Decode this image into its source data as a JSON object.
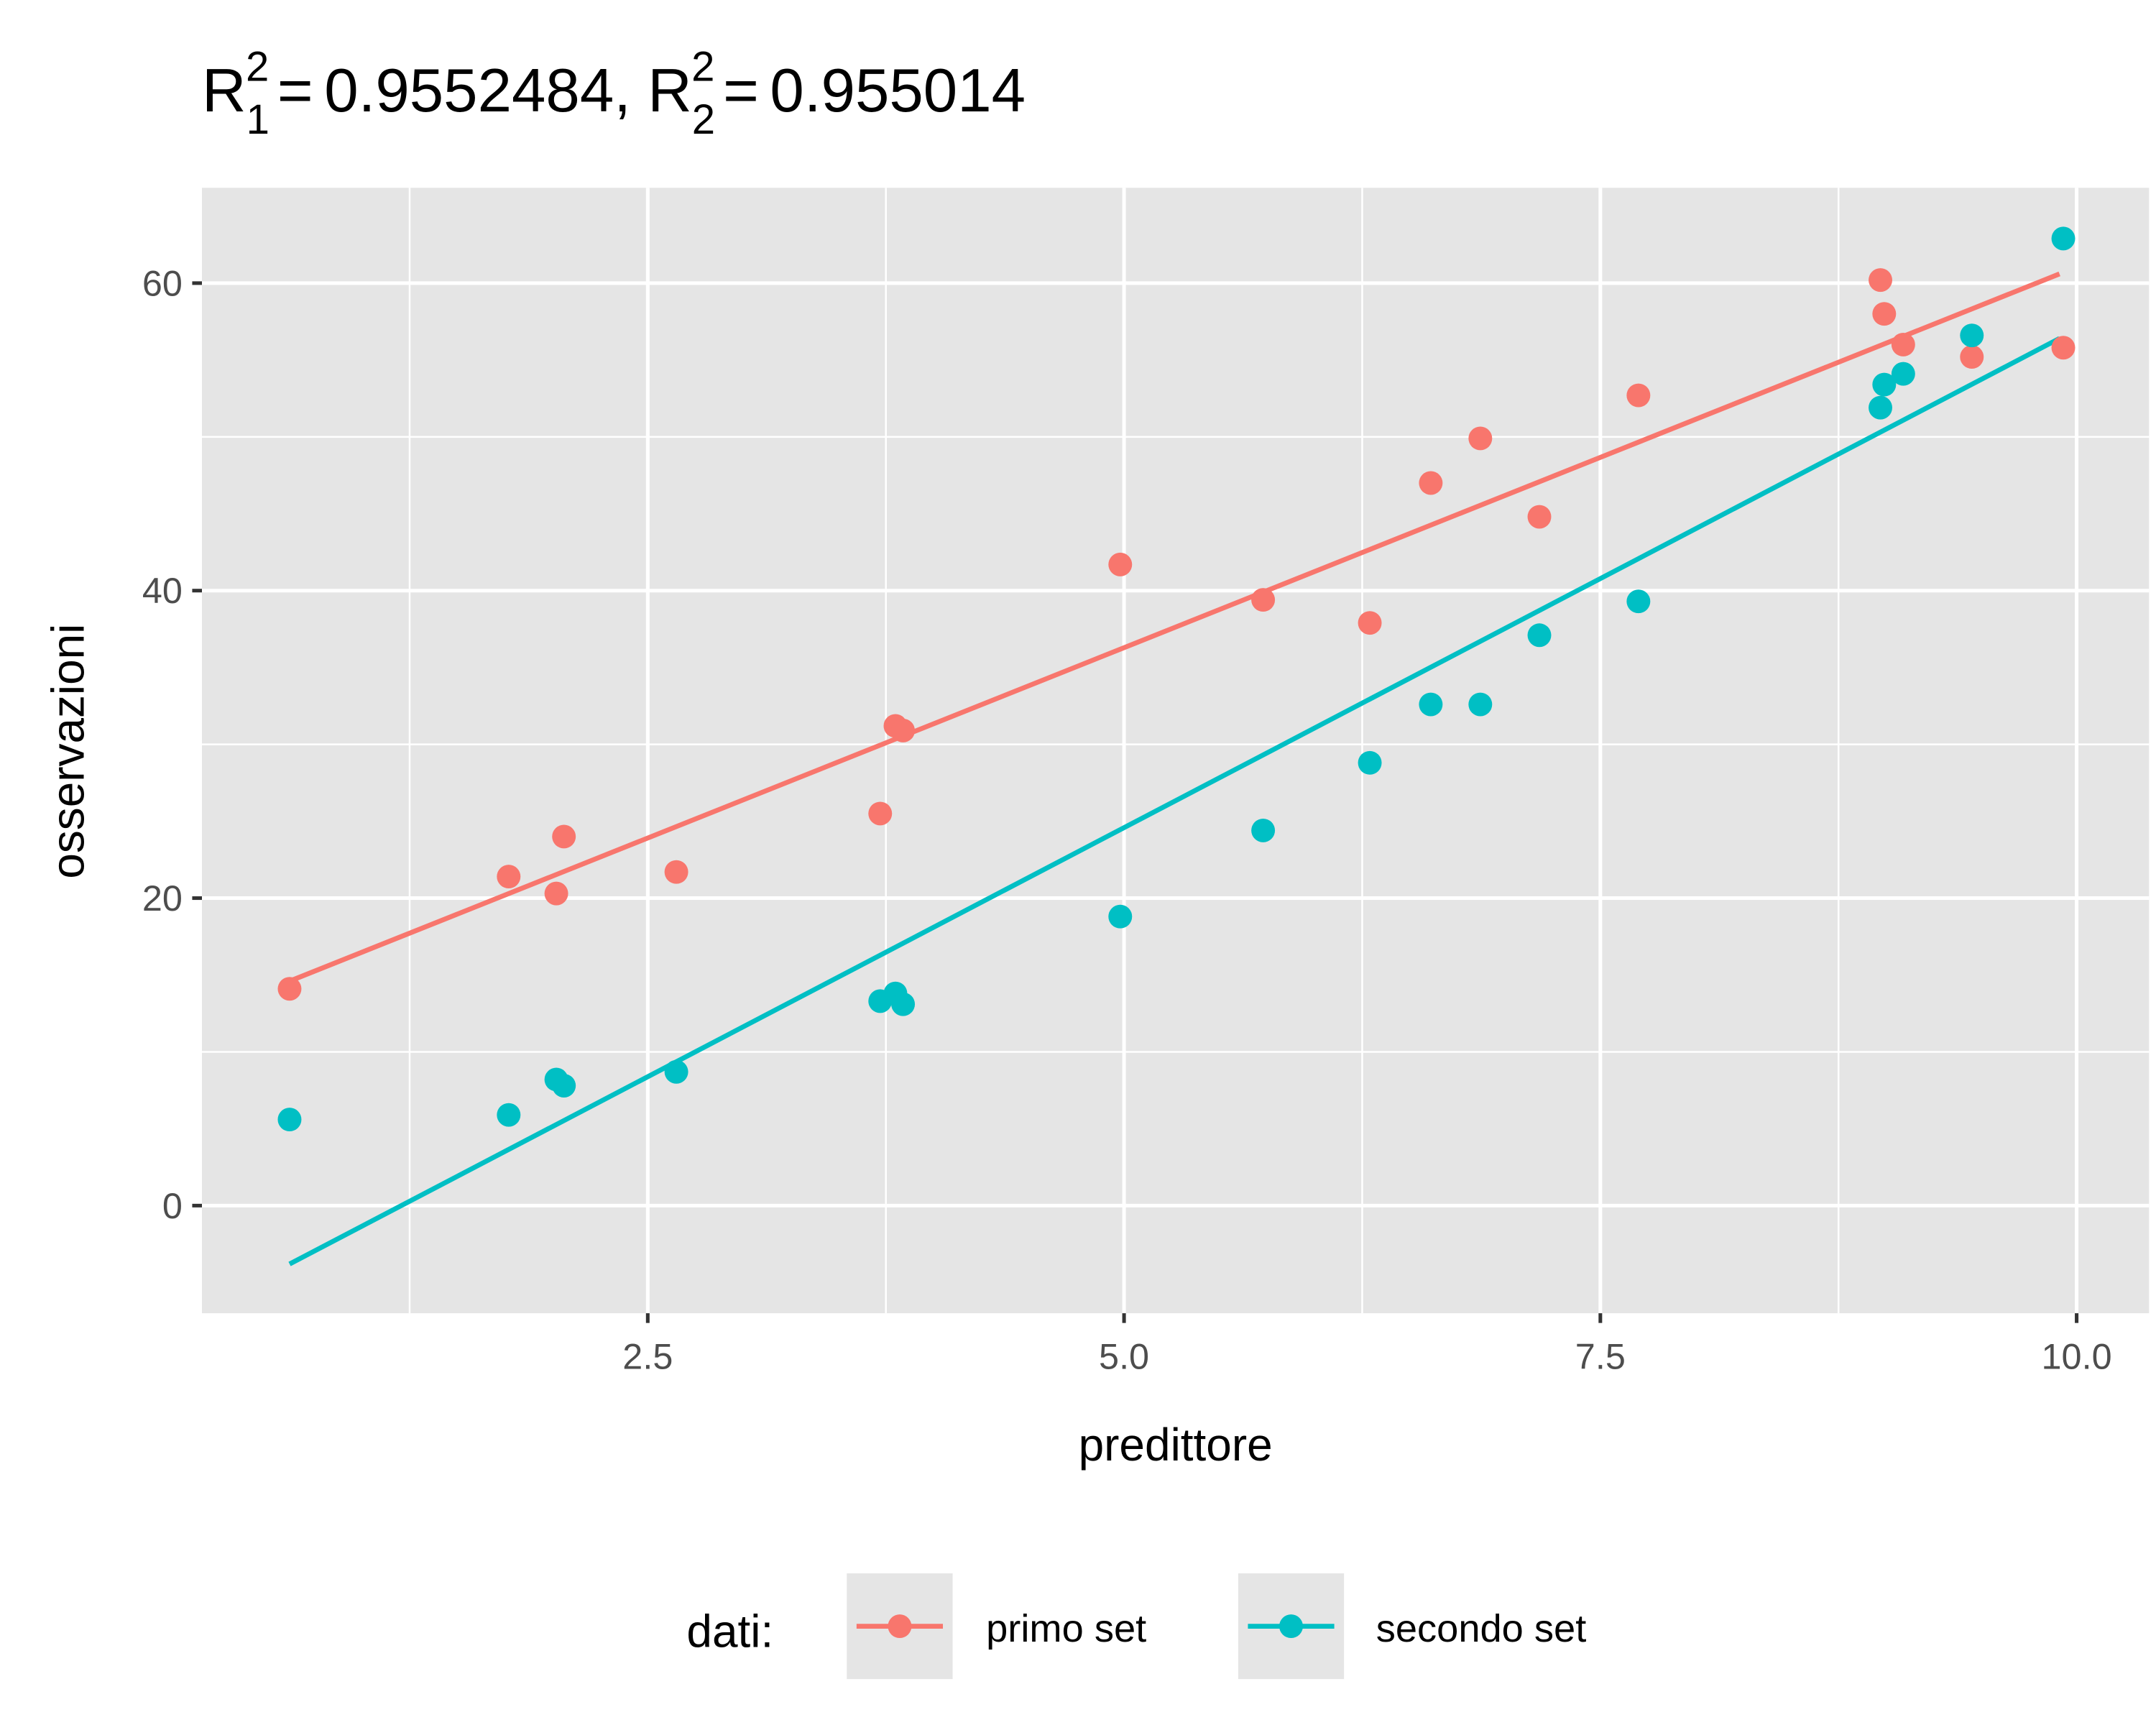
{
  "chart_data": {
    "type": "scatter",
    "title": {
      "symbol": "R",
      "r1_sub": "1",
      "r1_sup": "2",
      "r1_value": "0.9552484",
      "r2_sub": "2",
      "r2_sup": "2",
      "r2_value": "0.955014",
      "equals": "=",
      "separator": ","
    },
    "xlabel": "predittore",
    "ylabel": "osservazioni",
    "xlim": [
      0.16,
      10.38
    ],
    "ylim": [
      -7.0,
      66.2
    ],
    "xticks": [
      2.5,
      5.0,
      7.5,
      10.0
    ],
    "xtick_labels": [
      "2.5",
      "5.0",
      "7.5",
      "10.0"
    ],
    "xminor": [
      1.25,
      3.75,
      6.25,
      8.75
    ],
    "yticks": [
      0,
      20,
      40,
      60
    ],
    "ytick_labels": [
      "0",
      "20",
      "40",
      "60"
    ],
    "yminor": [
      10,
      30,
      50
    ],
    "grid": true,
    "background": "#e5e5e5",
    "legend": {
      "position": "bottom",
      "title": "dati:",
      "entries": [
        "primo set",
        "secondo set"
      ]
    },
    "series": [
      {
        "name": "primo set",
        "color": "#f8766d",
        "x": [
          0.62,
          1.77,
          2.02,
          2.06,
          2.65,
          3.72,
          3.8,
          3.84,
          4.98,
          5.73,
          6.29,
          6.61,
          6.87,
          7.18,
          7.7,
          8.97,
          8.99,
          9.09,
          9.45,
          9.93
        ],
        "y": [
          14.1,
          21.4,
          20.3,
          24.0,
          21.7,
          25.5,
          31.2,
          30.9,
          41.7,
          39.4,
          37.9,
          47.0,
          49.9,
          44.8,
          52.7,
          60.2,
          58.0,
          56.0,
          55.2,
          55.8
        ],
        "fit": {
          "x": [
            0.62,
            9.91
          ],
          "y": [
            14.6,
            60.6
          ]
        }
      },
      {
        "name": "secondo set",
        "color": "#00bfc4",
        "x": [
          0.62,
          1.77,
          2.02,
          2.06,
          2.65,
          3.72,
          3.8,
          3.84,
          4.98,
          5.73,
          6.29,
          6.61,
          6.87,
          7.18,
          7.7,
          8.97,
          8.99,
          9.09,
          9.45,
          9.93
        ],
        "y": [
          5.6,
          5.9,
          8.2,
          7.8,
          8.7,
          13.3,
          13.8,
          13.1,
          18.8,
          24.4,
          28.8,
          32.6,
          32.6,
          37.1,
          39.3,
          51.9,
          53.4,
          54.1,
          56.6,
          62.9
        ],
        "fit": {
          "x": [
            0.62,
            9.91
          ],
          "y": [
            -3.8,
            56.4
          ]
        }
      }
    ]
  }
}
